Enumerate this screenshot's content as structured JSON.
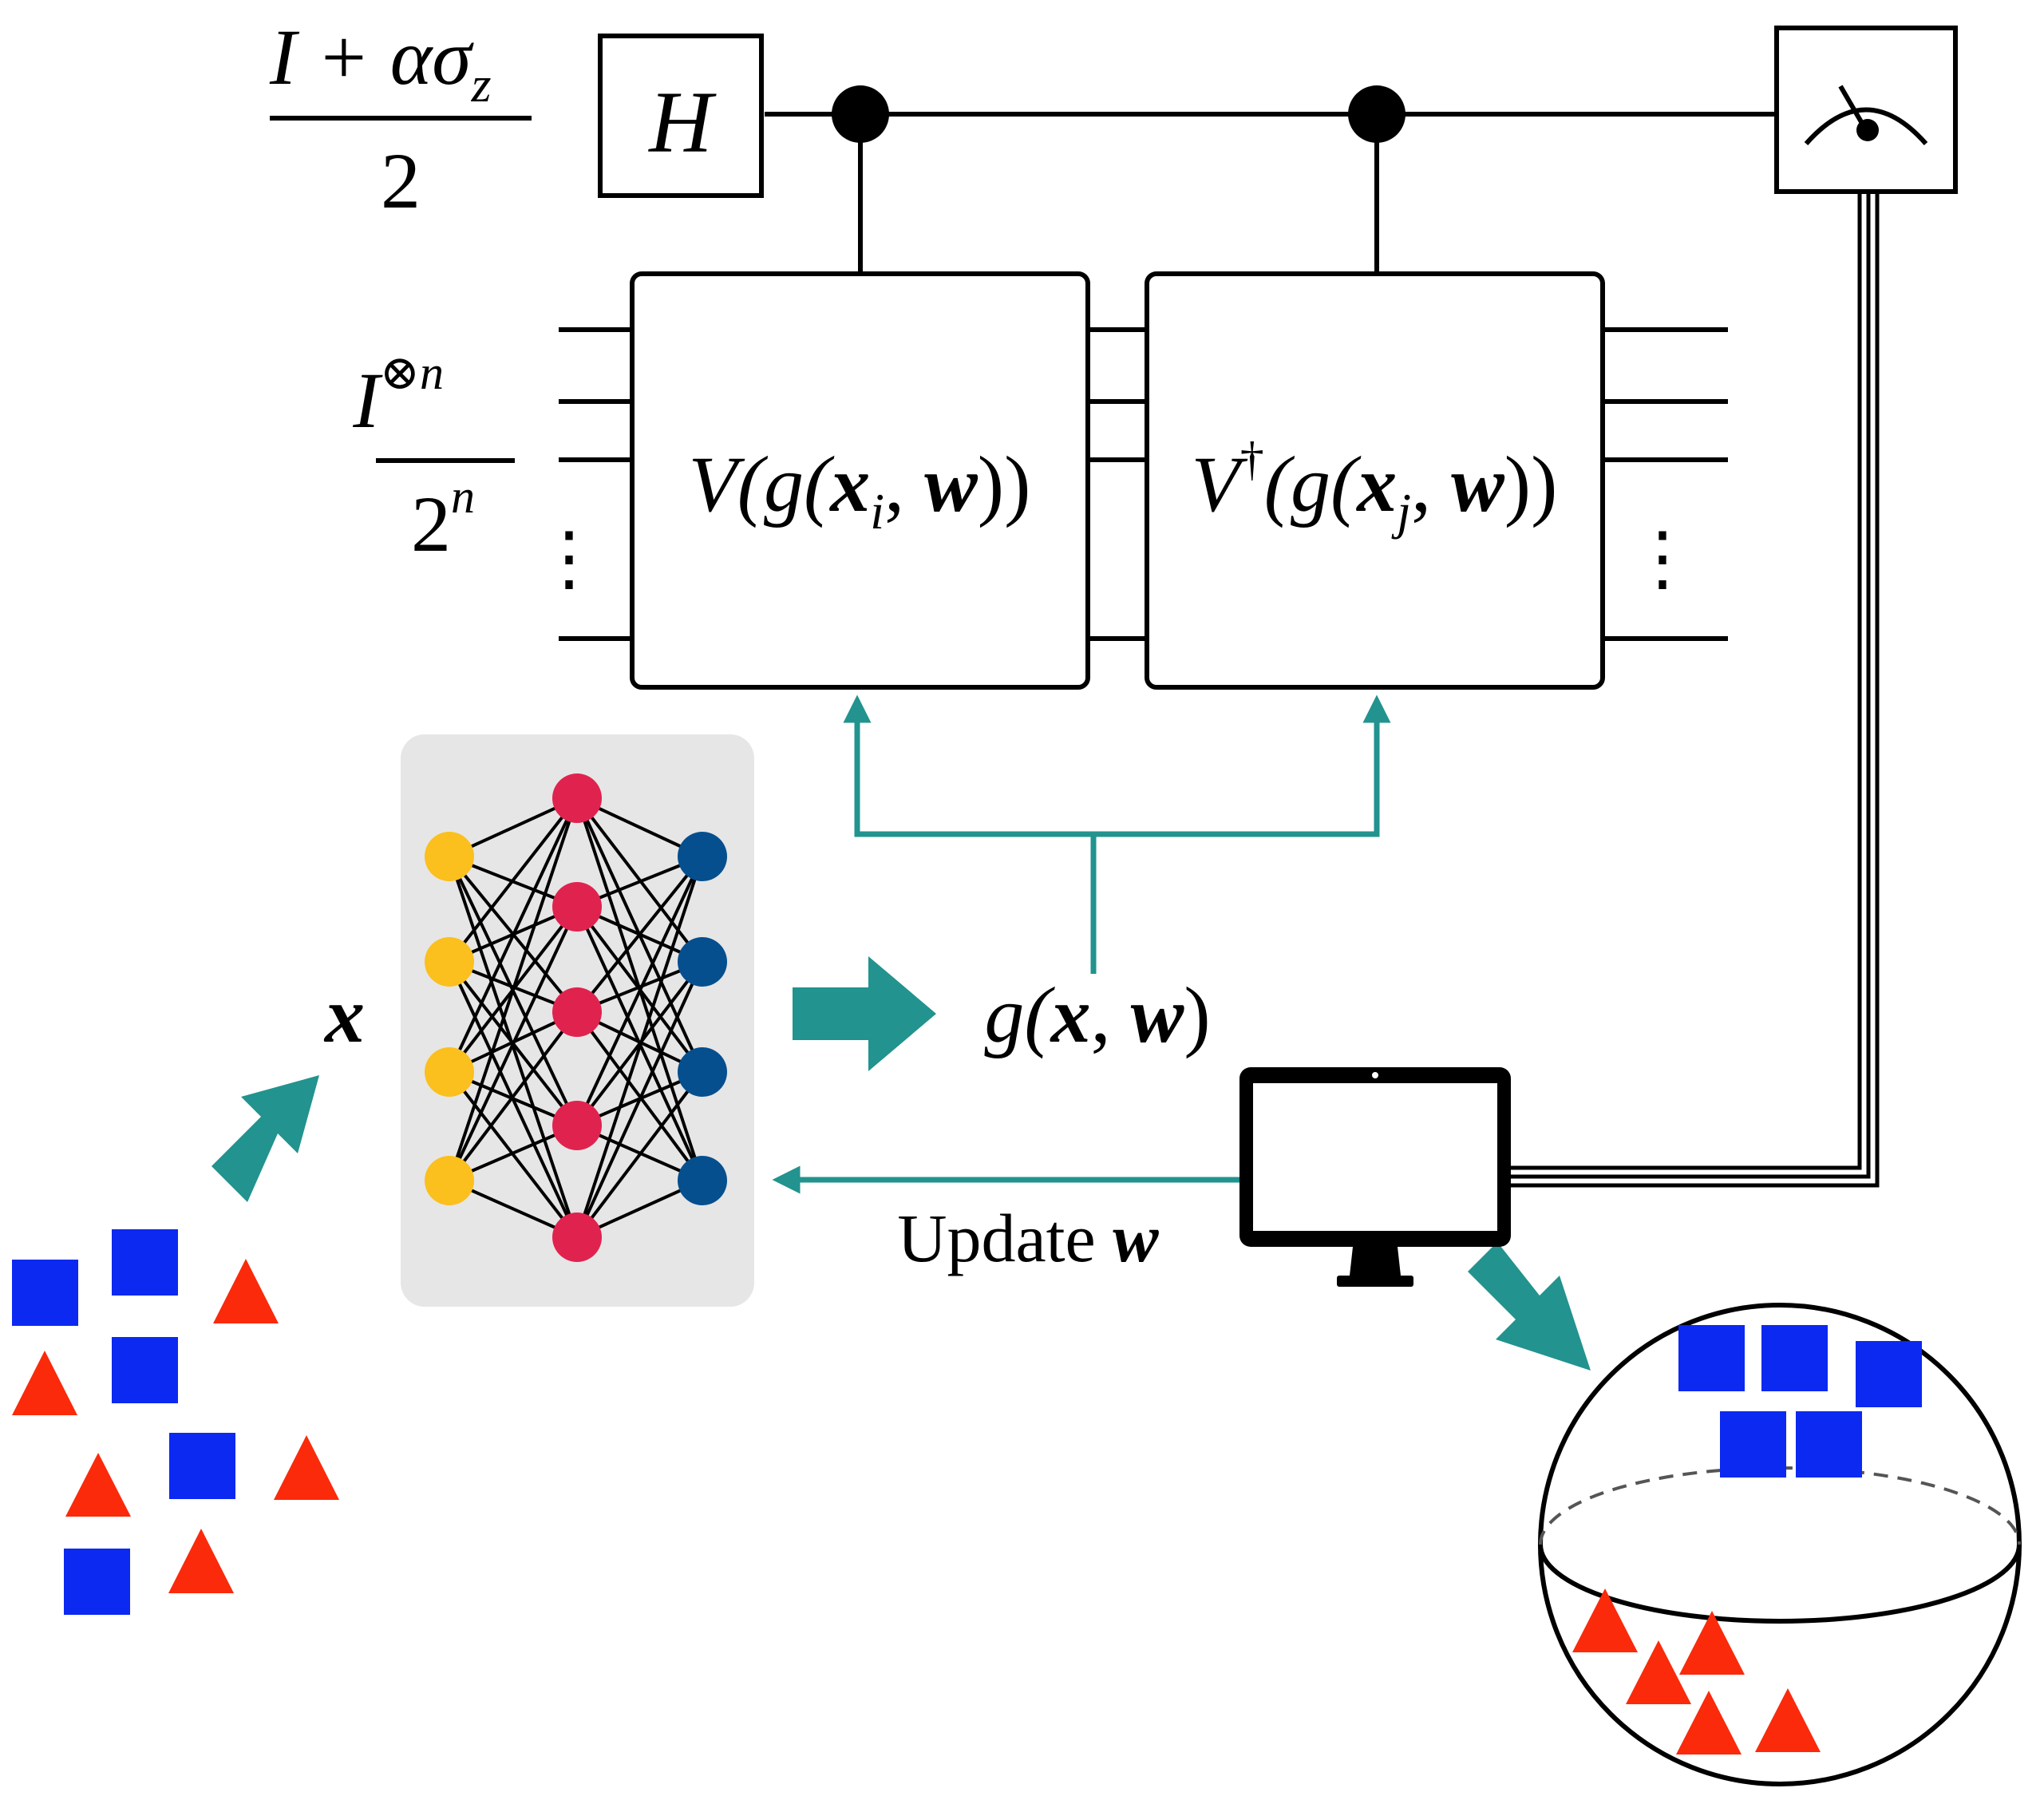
{
  "circuit": {
    "ancilla_state": {
      "numerator": "I + ασ",
      "numerator_sub": "z",
      "denominator": "2"
    },
    "register_state": {
      "numerator": "I",
      "numerator_sup": "⊗n",
      "denominator": "2",
      "denominator_sup": "n"
    },
    "hadamard_label": "H",
    "gate_v": {
      "prefix": "V(g(",
      "x": "x",
      "x_sub": "i",
      "sep": ", ",
      "w": "w",
      "suffix": "))"
    },
    "gate_vdag": {
      "prefix": "V",
      "dagger": "†",
      "open": "(g(",
      "x": "x",
      "x_sub": "j",
      "sep": ", ",
      "w": "w",
      "suffix": "))"
    },
    "ellipsis_left": "⋮",
    "ellipsis_right": "⋮",
    "measure_icon": "meter-icon"
  },
  "network": {
    "input_label": "x",
    "output_label": {
      "prefix": "g(",
      "x": "x",
      "sep": ", ",
      "w": "w",
      "suffix": ")"
    },
    "update_label": {
      "text": "Update ",
      "w": "w"
    },
    "colors": {
      "input": "#FBBF1E",
      "hidden": "#E0234E",
      "output": "#054F8F",
      "panel": "#E6E6E6"
    }
  },
  "computer_icon": "monitor-icon",
  "colors": {
    "teal": "#22938E",
    "square": "#0B29F0",
    "triangle": "#FA2A0B",
    "ink": "#000000"
  }
}
